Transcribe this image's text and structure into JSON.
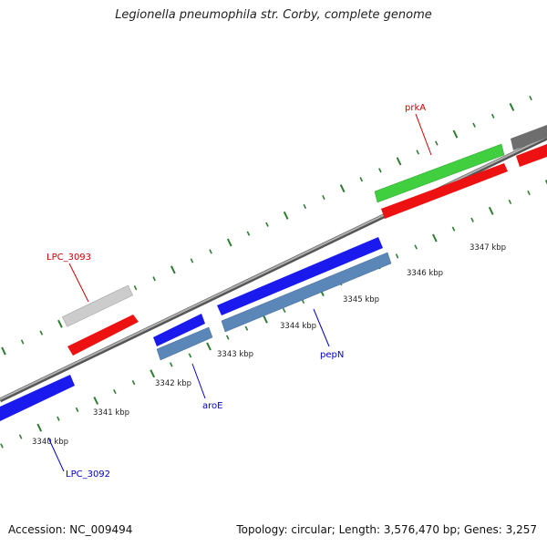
{
  "title": "Legionella pneumophila str. Corby, complete genome",
  "accession": "Accession: NC_009494",
  "summary": "Topology: circular; Length: 3,576,470 bp; Genes: 3,257",
  "kbp_labels": [
    "3340 kbp",
    "3341 kbp",
    "3342 kbp",
    "3343 kbp",
    "3344 kbp",
    "3345 kbp",
    "3346 kbp",
    "3347 kbp"
  ],
  "gene_labels": {
    "prkA": "prkA",
    "LPC_3093": "LPC_3093",
    "pepN": "pepN",
    "aroE": "aroE",
    "LPC_3092": "LPC_3092"
  },
  "colors": {
    "backbone": "#8a8a8a",
    "tick": "#2e7d32",
    "cds_forward": "#ff1a1a",
    "cds_reverse": "#1a1aee",
    "gene_forward": "#3fcf3f",
    "gene_reverse": "#5b86b8",
    "gray_feature": "#cccccc",
    "label_forward": "#cc0000",
    "label_reverse": "#0000cc"
  }
}
